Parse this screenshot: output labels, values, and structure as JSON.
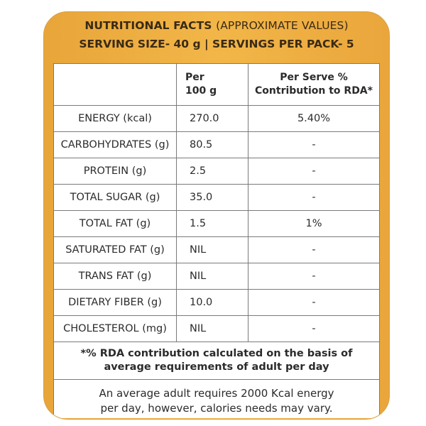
{
  "header": {
    "line1_bold": "NUTRITIONAL FACTS",
    "line1_light": "(APPROXIMATE VALUES)",
    "line2": "SERVING SIZE- 40 g | SERVINGS PER PACK- 5"
  },
  "columns": {
    "per_100g_line1": "Per",
    "per_100g_line2": "100 g",
    "rda_line1": "Per Serve %",
    "rda_line2": "Contribution to RDA*"
  },
  "rows": [
    {
      "nutrient": "ENERGY (kcal)",
      "per100": "270.0",
      "rda": "5.40%"
    },
    {
      "nutrient": "CARBOHYDRATES (g)",
      "per100": "80.5",
      "rda": "-"
    },
    {
      "nutrient": "PROTEIN (g)",
      "per100": "2.5",
      "rda": "-"
    },
    {
      "nutrient": "TOTAL SUGAR (g)",
      "per100": "35.0",
      "rda": "-"
    },
    {
      "nutrient": "TOTAL FAT (g)",
      "per100": "1.5",
      "rda": "1%"
    },
    {
      "nutrient": "SATURATED FAT (g)",
      "per100": "NIL",
      "rda": "-"
    },
    {
      "nutrient": "TRANS FAT (g)",
      "per100": "NIL",
      "rda": "-"
    },
    {
      "nutrient": "DIETARY FIBER (g)",
      "per100": "10.0",
      "rda": "-"
    },
    {
      "nutrient": "CHOLESTEROL (mg)",
      "per100": "NIL",
      "rda": "-"
    }
  ],
  "notes": {
    "rda_line1": "*% RDA contribution calculated on the basis of",
    "rda_line2": "average requirements of adult per day",
    "energy_line1": "An average adult requires 2000 Kcal energy",
    "energy_line2": "per day, however, calories needs may vary."
  },
  "colors": {
    "accent": "#f2b648",
    "border": "#7a7a7a"
  }
}
